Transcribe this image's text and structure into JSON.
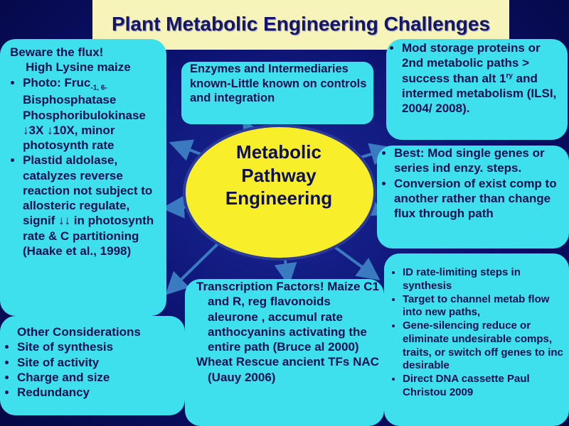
{
  "title": "Plant Metabolic Engineering Challenges",
  "center": "Metabolic Pathway Engineering",
  "boxes": {
    "flux": {
      "title": "Beware the flux!",
      "subtitle": "High Lysine maize",
      "bullets": [
        {
          "parts": [
            "Photo: Fruc",
            "-1, 6-",
            " Bisphosphatase Phosphoribulokinase ↓3X ↓10X, minor photosynth rate"
          ]
        },
        {
          "parts": [
            "Plastid aldolase, catalyzes reverse reaction  not subject to allosteric regulate, signif ↓↓ in photosynth rate & C partitioning (Haake et al., 1998)"
          ]
        }
      ]
    },
    "enzymes": {
      "text": "Enzymes and Intermediaries known-Little known on controls and integration"
    },
    "storage": {
      "bullets": [
        {
          "parts": [
            "Mod storage proteins or 2nd metabolic paths > success than alt 1",
            "ry",
            " and intermed metabolism (ILSI, 2004/ 2008)."
          ]
        }
      ]
    },
    "best": {
      "bullets": [
        "Best:  Mod single genes or series ind enzy. steps.",
        "Conversion of exist comp to another rather than change flux through path"
      ]
    },
    "rate": {
      "bullets": [
        "ID rate-limiting  steps in synthesis",
        "Target to channel metab flow into new paths,",
        "Gene-silencing reduce or eliminate undesirable comps, traits, or switch off genes to inc desirable",
        "Direct DNA cassette Paul Christou 2009"
      ]
    },
    "transcription": {
      "paragraphs": [
        "Transcription Factors! Maize C1 and R, reg flavonoids aleurone , accumul rate anthocyanins activating the entire path (Bruce al 2000)",
        "Wheat Rescue ancient TFs NAC (Uauy 2006)"
      ]
    },
    "other": {
      "title": "Other Considerations",
      "bullets": [
        "Site of synthesis",
        "Site of activity",
        "Charge and size",
        "Redundancy"
      ]
    }
  }
}
